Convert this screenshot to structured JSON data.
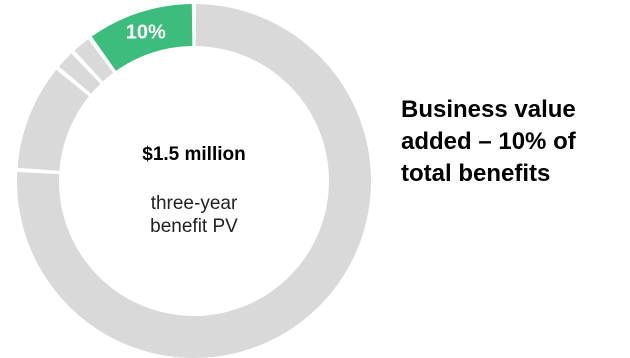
{
  "chart_data": {
    "type": "pie",
    "style": "donut",
    "slices": [
      {
        "value": 76,
        "color": "#d9d9d9"
      },
      {
        "value": 10,
        "color": "#d9d9d9"
      },
      {
        "value": 2,
        "color": "#d9d9d9"
      },
      {
        "value": 2,
        "color": "#d9d9d9"
      },
      {
        "value": 10,
        "color": "#3dbd7d",
        "label": "10%",
        "label_color": "#ffffff"
      }
    ],
    "center_value": "$1.5 million",
    "center_caption": [
      "three-year",
      "benefit PV"
    ],
    "side_caption": [
      "Business value",
      "added – 10% of",
      "total benefits"
    ]
  }
}
